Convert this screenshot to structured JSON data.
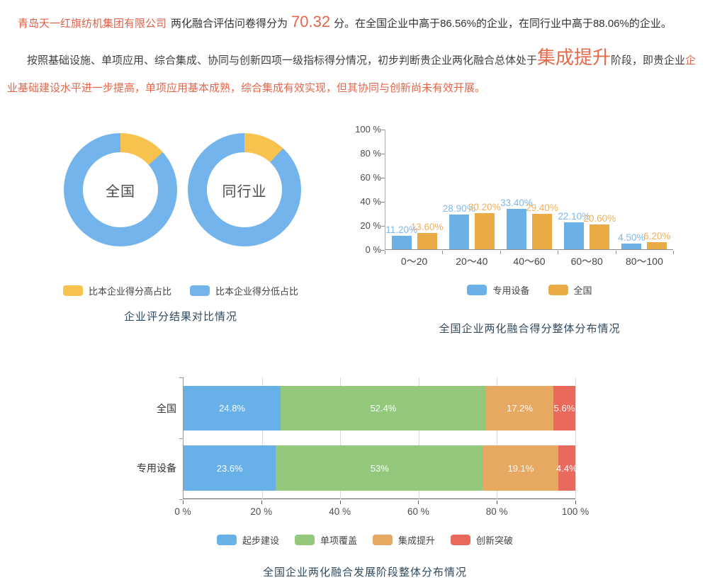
{
  "header": {
    "company_name": "青岛天一红旗纺机集团有限公司",
    "score_label": "两化融合评估问卷得分为",
    "score_value": "70.32",
    "score_suffix": "分。在全国企业中高于86.56%的企业，在同行业中高于88.06%的企业。",
    "analysis_prefix": "按照基础设施、单项应用、综合集成、协同与创新四项一级指标得分情况，初步判断贵企业两化融合总体处于",
    "analysis_stage": "集成提升",
    "analysis_middle": "阶段，即贵企业",
    "analysis_highlight": "企业基础建设水平进一步提高，单项应用基本成熟，综合集成有效实现，但其协同与创新尚未有效开展。"
  },
  "colors": {
    "accent_red": "#e0614a",
    "title_navy": "#31495e"
  },
  "chart_data": [
    {
      "type": "pie",
      "variant": "double-donut",
      "title": "企业评分结果对比情况",
      "legend": [
        {
          "label": "比本企业得分高占比",
          "color": "#f8c24e"
        },
        {
          "label": "比本企业得分低占比",
          "color": "#72b4eb"
        }
      ],
      "donuts": [
        {
          "center_label": "全国",
          "higher_pct": 13.44,
          "lower_pct": 86.56
        },
        {
          "center_label": "同行业",
          "higher_pct": 11.94,
          "lower_pct": 88.06
        }
      ]
    },
    {
      "type": "bar",
      "variant": "grouped-vertical",
      "title": "全国企业两化融合得分整体分布情况",
      "categories": [
        "0～20",
        "20～40",
        "40～60",
        "60～80",
        "80～100"
      ],
      "series": [
        {
          "name": "专用设备",
          "color": "#6bb1e8",
          "label_color": "#7eb8ea",
          "values": [
            11.2,
            28.9,
            33.4,
            22.1,
            4.5
          ],
          "labels": [
            "11.20%",
            "28.90%",
            "33.40%",
            "22.10%",
            "4.50%"
          ]
        },
        {
          "name": "全国",
          "color": "#eaab47",
          "label_color": "#f0b159",
          "values": [
            13.6,
            30.2,
            29.4,
            20.6,
            6.2
          ],
          "labels": [
            "13.60%",
            "30.20%",
            "29.40%",
            "20.60%",
            "6.20%"
          ]
        }
      ],
      "yticks": [
        "0 %",
        "20 %",
        "40 %",
        "60 %",
        "80 %",
        "100 %"
      ],
      "ylim": [
        0,
        100
      ],
      "grid": false,
      "legend_position": "bottom"
    },
    {
      "type": "bar",
      "variant": "stacked-horizontal",
      "title": "全国企业两化融合发展阶段整体分布情况",
      "categories": [
        "全国",
        "专用设备"
      ],
      "series": [
        {
          "name": "起步建设",
          "color": "#68b0e8",
          "values": [
            24.8,
            23.6
          ],
          "labels": [
            "24.8%",
            "23.6%"
          ]
        },
        {
          "name": "单项覆盖",
          "color": "#93c87d",
          "values": [
            52.4,
            53
          ],
          "labels": [
            "52.4%",
            "53%"
          ]
        },
        {
          "name": "集成提升",
          "color": "#e7a862",
          "values": [
            17.2,
            19.1
          ],
          "labels": [
            "17.2%",
            "19.1%"
          ]
        },
        {
          "name": "创新突破",
          "color": "#e96a5c",
          "values": [
            5.6,
            4.4
          ],
          "labels": [
            "5.6%",
            "4.4%"
          ]
        }
      ],
      "xticks": [
        "0 %",
        "20 %",
        "40 %",
        "60 %",
        "80 %",
        "100 %"
      ],
      "xlim": [
        0,
        100
      ],
      "grid": true,
      "legend_position": "bottom"
    }
  ]
}
